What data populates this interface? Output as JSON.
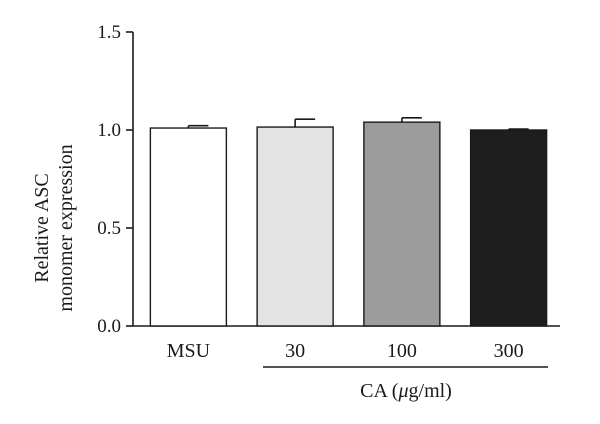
{
  "chart_data": {
    "type": "bar",
    "categories": [
      "MSU",
      "30",
      "100",
      "300"
    ],
    "values": [
      1.01,
      1.015,
      1.04,
      1.0
    ],
    "errors": [
      0.012,
      0.04,
      0.022,
      0.005
    ],
    "bar_colors": [
      "#ffffff",
      "#e3e3e3",
      "#9c9c9c",
      "#1e1e1e"
    ],
    "ylabel": [
      "Relative ASC",
      "monomer expression"
    ],
    "xgroup_label": "CA (μg/ml)",
    "xgroup_prefix": "CA (",
    "xgroup_unit_mu": "μ",
    "xgroup_suffix": "g/ml)",
    "ylim": [
      0,
      1.5
    ],
    "yticks": [
      0.0,
      0.5,
      1.0,
      1.5
    ],
    "ytick_labels": [
      "0.0",
      "0.5",
      "1.0",
      "1.5"
    ],
    "grid": false
  }
}
